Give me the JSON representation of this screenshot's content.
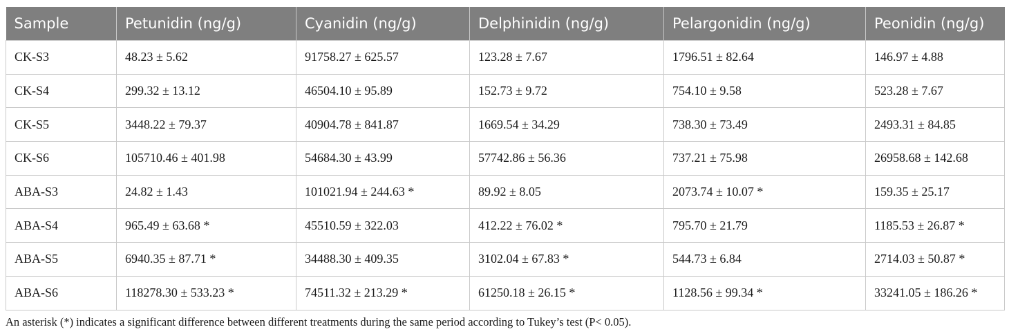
{
  "table": {
    "headers": [
      "Sample",
      "Petunidin (ng/g)",
      "Cyanidin (ng/g)",
      "Delphinidin (ng/g)",
      "Pelargonidin (ng/g)",
      "Peonidin (ng/g)"
    ],
    "rows": [
      [
        "CK-S3",
        "48.23 ± 5.62",
        "91758.27 ± 625.57",
        "123.28 ± 7.67",
        "1796.51 ± 82.64",
        "146.97 ± 4.88"
      ],
      [
        "CK-S4",
        "299.32 ± 13.12",
        "46504.10 ± 95.89",
        "152.73 ± 9.72",
        "754.10 ± 9.58",
        "523.28 ± 7.67"
      ],
      [
        "CK-S5",
        "3448.22 ± 79.37",
        "40904.78 ± 841.87",
        "1669.54 ± 34.29",
        "738.30 ± 73.49",
        "2493.31 ± 84.85"
      ],
      [
        "CK-S6",
        "105710.46 ± 401.98",
        "54684.30 ± 43.99",
        "57742.86 ± 56.36",
        "737.21 ± 75.98",
        "26958.68 ± 142.68"
      ],
      [
        "ABA-S3",
        "24.82 ± 1.43",
        "101021.94 ± 244.63 *",
        "89.92 ± 8.05",
        "2073.74 ± 10.07 *",
        "159.35 ± 25.17"
      ],
      [
        "ABA-S4",
        "965.49 ± 63.68 *",
        "45510.59 ± 322.03",
        "412.22 ± 76.02 *",
        "795.70 ± 21.79",
        "1185.53 ± 26.87 *"
      ],
      [
        "ABA-S5",
        "6940.35 ± 87.71 *",
        "34488.30 ± 409.35",
        "3102.04 ± 67.83 *",
        "544.73 ± 6.84",
        "2714.03 ± 50.87 *"
      ],
      [
        "ABA-S6",
        "118278.30 ± 533.23 *",
        "74511.32 ± 213.29 *",
        "61250.18 ± 26.15 *",
        "1128.56 ± 99.34 *",
        "33241.05 ± 186.26 *"
      ]
    ]
  },
  "footnote": "An asterisk (*) indicates a significant difference between different treatments during the same period according to Tukey’s test (P< 0.05).",
  "colors": {
    "header_bg": "#7f7f7f",
    "header_text": "#ffffff",
    "grid": "#c9c9c9"
  }
}
